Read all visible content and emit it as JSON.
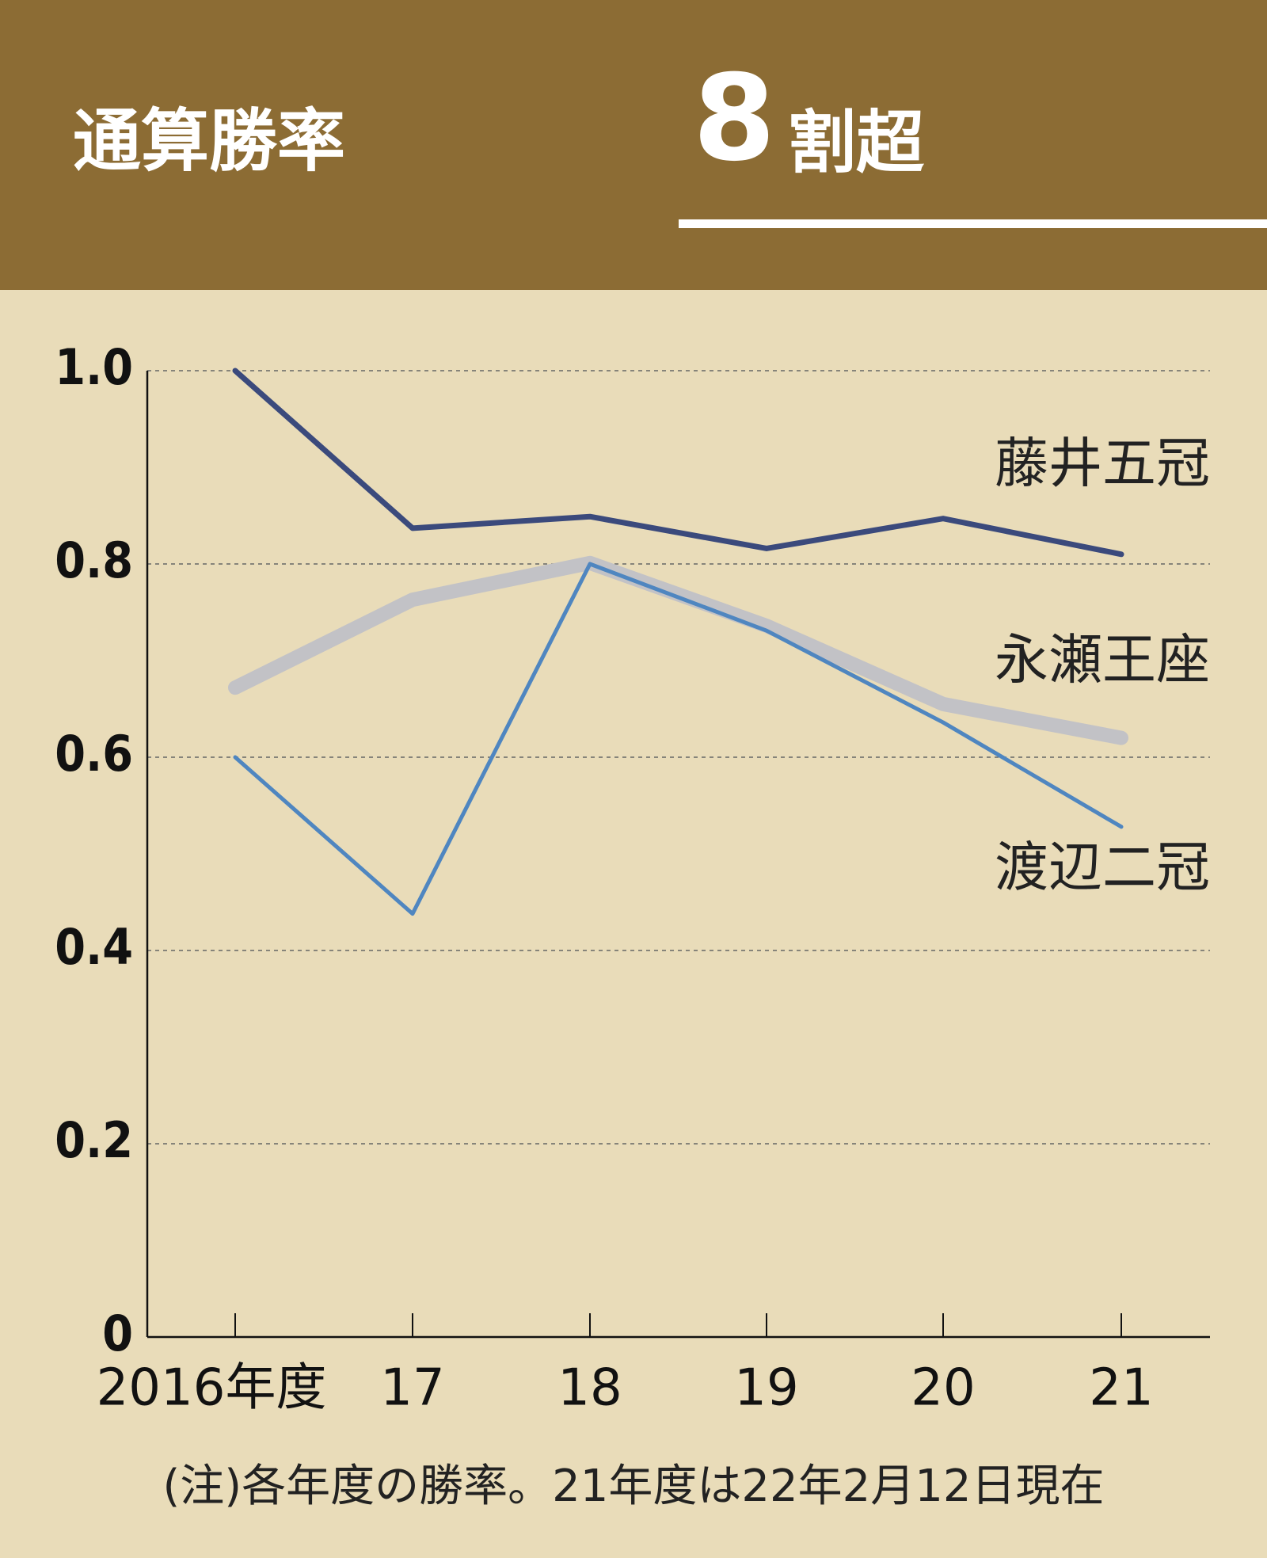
{
  "chart_data": {
    "type": "line",
    "title": "通算勝率",
    "headline": {
      "number": "8",
      "text": "割超"
    },
    "note": "(注)各年度の勝率。21年度は22年2月12日現在",
    "categories": [
      "2016年度",
      "17",
      "18",
      "19",
      "20",
      "21"
    ],
    "series": [
      {
        "name": "藤井五冠",
        "color": "#3b4a7c",
        "values": [
          1.0,
          0.837,
          0.849,
          0.816,
          0.847,
          0.81
        ]
      },
      {
        "name": "永瀬王座",
        "color": "#c2c2c6",
        "values": [
          0.672,
          0.763,
          0.801,
          0.736,
          0.655,
          0.62
        ]
      },
      {
        "name": "渡辺二冠",
        "color": "#4f86c0",
        "values": [
          0.6,
          0.438,
          0.8,
          0.731,
          0.636,
          0.528
        ]
      }
    ],
    "ylim": [
      0,
      1
    ],
    "yticks": [
      0,
      0.2,
      0.4,
      0.6,
      0.8,
      {
        "value": 1,
        "label": "1.0"
      }
    ],
    "grid": true
  }
}
